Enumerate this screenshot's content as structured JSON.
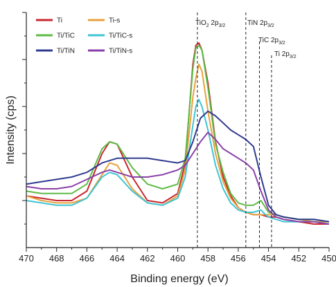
{
  "chart_data": {
    "type": "line",
    "xlabel": "Binding energy (eV)",
    "ylabel": "Intensity (cps)",
    "xlim": [
      470,
      450
    ],
    "ylim": [
      0,
      100
    ],
    "x_ticks": [
      "470",
      "468",
      "466",
      "464",
      "462",
      "460",
      "458",
      "456",
      "454",
      "452",
      "450"
    ],
    "y_ticks": [
      "",
      "",
      "",
      "",
      ""
    ],
    "grid": false,
    "legend_position": "top-left",
    "series": [
      {
        "name": "Ti",
        "color": "#c8262e",
        "x": [
          470,
          469,
          468,
          467,
          466,
          465,
          464.5,
          464,
          463,
          462,
          461,
          460,
          459.5,
          459,
          458.8,
          458.6,
          458.4,
          458,
          457.5,
          457,
          456.5,
          456,
          455.5,
          455,
          454.5,
          454,
          453.5,
          453,
          452,
          451,
          450
        ],
        "y": [
          22,
          21,
          20,
          20,
          24,
          40,
          45,
          44,
          30,
          20,
          19,
          23,
          36,
          78,
          86,
          87,
          84,
          70,
          45,
          30,
          22,
          17,
          15,
          14,
          14,
          13,
          13,
          12,
          11,
          10,
          10
        ]
      },
      {
        "name": "Ti-s",
        "color": "#e8a13c",
        "x": [
          470,
          469,
          468,
          467,
          466,
          465,
          464.5,
          464,
          463,
          462,
          461,
          460,
          459.5,
          459,
          458.8,
          458.6,
          458.4,
          458,
          457.5,
          457,
          456.5,
          456,
          455.5,
          455,
          454.5,
          454,
          453.5,
          453,
          452,
          451,
          450
        ],
        "y": [
          22,
          20,
          19,
          19,
          21,
          31,
          36,
          35,
          25,
          19,
          18,
          22,
          33,
          64,
          72,
          78,
          75,
          58,
          40,
          28,
          21,
          17,
          15,
          14,
          14,
          14,
          14,
          13,
          12,
          11,
          11
        ]
      },
      {
        "name": "Ti/TiC",
        "color": "#5dbb46",
        "x": [
          470,
          469,
          468,
          467,
          466,
          465,
          464.5,
          464,
          463,
          462,
          461,
          460,
          459.5,
          459,
          458.8,
          458.6,
          458.4,
          458,
          457.5,
          457,
          456.5,
          456,
          455.5,
          455,
          454.5,
          454.2,
          454,
          453.5,
          453,
          452,
          451,
          450
        ],
        "y": [
          24,
          23,
          23,
          23,
          27,
          42,
          45,
          44,
          34,
          27,
          25,
          27,
          38,
          76,
          85,
          86,
          84,
          68,
          44,
          32,
          23,
          19,
          18,
          18,
          20,
          17,
          15,
          14,
          13,
          12,
          12,
          11
        ]
      },
      {
        "name": "Ti/TiC-s",
        "color": "#3fc4d4",
        "x": [
          470,
          469,
          468,
          467,
          466,
          465,
          464.5,
          464,
          463,
          462,
          461,
          460,
          459.5,
          459,
          458.8,
          458.6,
          458.4,
          458,
          457.5,
          457,
          456.5,
          456,
          455.5,
          455,
          454.5,
          454.2,
          454,
          453.5,
          453,
          452,
          451,
          450
        ],
        "y": [
          20,
          19,
          18,
          18,
          21,
          30,
          32,
          31,
          24,
          19,
          18,
          21,
          30,
          52,
          60,
          63,
          60,
          50,
          35,
          25,
          19,
          16,
          15,
          15,
          16,
          14,
          13,
          12,
          11,
          11,
          11,
          10
        ]
      },
      {
        "name": "Ti/TiN",
        "color": "#2e3a8f",
        "x": [
          470,
          469,
          468,
          467,
          466,
          465,
          464,
          463,
          462,
          461,
          460,
          459.5,
          459,
          458.5,
          458,
          457.5,
          457,
          456.5,
          456,
          455.5,
          455,
          454.5,
          454,
          453.5,
          453,
          452,
          451,
          450
        ],
        "y": [
          27,
          28,
          29,
          30,
          32,
          36,
          38,
          38,
          38,
          37,
          36,
          37,
          45,
          55,
          58,
          56,
          53,
          50,
          48,
          46,
          43,
          30,
          18,
          14,
          13,
          12,
          12,
          11
        ]
      },
      {
        "name": "Ti/TiN-s",
        "color": "#8a3fa8",
        "x": [
          470,
          469,
          468,
          467,
          466,
          465,
          464.5,
          464,
          463,
          462,
          461,
          460,
          459.5,
          459,
          458.5,
          458,
          457.5,
          457,
          456.5,
          456,
          455.5,
          455,
          454.5,
          454,
          453.5,
          453,
          452,
          451,
          450
        ],
        "y": [
          26,
          25,
          25,
          26,
          29,
          32,
          33,
          32,
          30,
          30,
          31,
          33,
          35,
          40,
          45,
          49,
          46,
          42,
          40,
          38,
          36,
          33,
          24,
          16,
          13,
          12,
          11,
          11,
          10
        ]
      }
    ],
    "annotations": [
      {
        "x": 458.7,
        "label": "TiO",
        "sub": "2",
        "suffix": " 2p",
        "sub2": "3/2"
      },
      {
        "x": 455.5,
        "label": "TiN",
        "sub": "",
        "suffix": " 2p",
        "sub2": "3/2"
      },
      {
        "x": 454.6,
        "label": "TiC",
        "sub": "",
        "suffix": " 2p",
        "sub2": "3/2"
      },
      {
        "x": 453.8,
        "label": "Ti",
        "sub": "",
        "suffix": " 2p",
        "sub2": "3/2"
      }
    ]
  }
}
